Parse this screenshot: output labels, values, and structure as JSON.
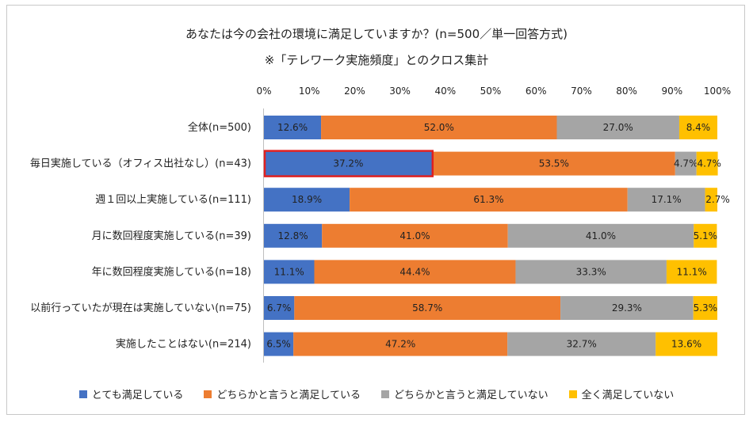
{
  "chart_data": {
    "type": "bar",
    "orientation": "horizontal",
    "stacked": "percent",
    "title": "あなたは今の会社の環境に満足していますか？(n=500／単一回答方式)",
    "subtitle": "※「テレワーク実施頻度」とのクロス集計",
    "xlim": [
      0,
      100
    ],
    "x_ticks": [
      "0%",
      "10%",
      "20%",
      "30%",
      "40%",
      "50%",
      "60%",
      "70%",
      "80%",
      "90%",
      "100%"
    ],
    "categories": [
      "全体(n=500)",
      "毎日実施している（オフィス出社なし）(n=43)",
      "週１回以上実施している(n=111)",
      "月に数回程度実施している(n=39)",
      "年に数回程度実施している(n=18)",
      "以前行っていたが現在は実施していない(n=75)",
      "実施したことはない(n=214)"
    ],
    "series": [
      {
        "name": "とても満足している",
        "color": "#4472C4",
        "values": [
          12.6,
          37.2,
          18.9,
          12.8,
          11.1,
          6.7,
          6.5
        ]
      },
      {
        "name": "どちらかと言うと満足している",
        "color": "#ED7D31",
        "values": [
          52.0,
          53.5,
          61.3,
          41.0,
          44.4,
          58.7,
          47.2
        ]
      },
      {
        "name": "どちらかと言うと満足していない",
        "color": "#A5A5A5",
        "values": [
          27.0,
          4.7,
          17.1,
          41.0,
          33.3,
          29.3,
          32.7
        ]
      },
      {
        "name": "全く満足していない",
        "color": "#FFC000",
        "values": [
          8.4,
          4.7,
          2.7,
          5.1,
          11.1,
          5.3,
          13.6
        ]
      }
    ],
    "data_labels": [
      [
        "12.6%",
        "37.2%",
        "18.9%",
        "12.8%",
        "11.1%",
        "6.7%",
        "6.5%"
      ],
      [
        "52.0%",
        "53.5%",
        "61.3%",
        "41.0%",
        "44.4%",
        "58.7%",
        "47.2%"
      ],
      [
        "27.0%",
        "4.7%",
        "17.1%",
        "41.0%",
        "33.3%",
        "29.3%",
        "32.7%"
      ],
      [
        "8.4%",
        "4.7%",
        "2.7%",
        "5.1%",
        "11.1%",
        "5.3%",
        "13.6%"
      ]
    ],
    "highlight": {
      "series": 0,
      "category": 1,
      "color": "#E02020"
    },
    "legend_position": "bottom",
    "grid": false
  }
}
